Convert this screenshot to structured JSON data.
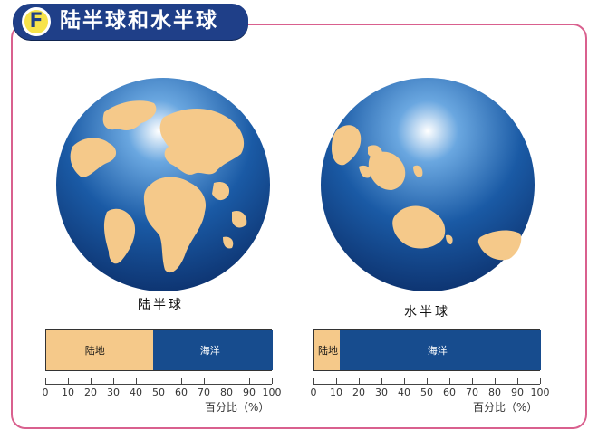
{
  "header": {
    "badge": "F",
    "title": "陆半球和水半球"
  },
  "colors": {
    "land": "#f5c98a",
    "ocean": "#174c8e",
    "ocean_light": "#4e8fd0",
    "frame": "#d9608e",
    "title_bg": "#1f3f88"
  },
  "globes": [
    {
      "caption": "陆半球"
    },
    {
      "caption": "水半球"
    }
  ],
  "chart_data": [
    {
      "type": "bar",
      "title": "陆半球",
      "categories": [
        "陆地",
        "海洋"
      ],
      "values": [
        47,
        53
      ],
      "xlabel": "百分比（%）",
      "xlim": [
        0,
        100
      ],
      "ticks": [
        "0",
        "10",
        "20",
        "30",
        "40",
        "50",
        "60",
        "70",
        "80",
        "90",
        "100"
      ]
    },
    {
      "type": "bar",
      "title": "水半球",
      "categories": [
        "陆地",
        "海洋"
      ],
      "values": [
        11,
        89
      ],
      "xlabel": "百分比（%）",
      "xlim": [
        0,
        100
      ],
      "ticks": [
        "0",
        "10",
        "20",
        "30",
        "40",
        "50",
        "60",
        "70",
        "80",
        "90",
        "100"
      ]
    }
  ]
}
